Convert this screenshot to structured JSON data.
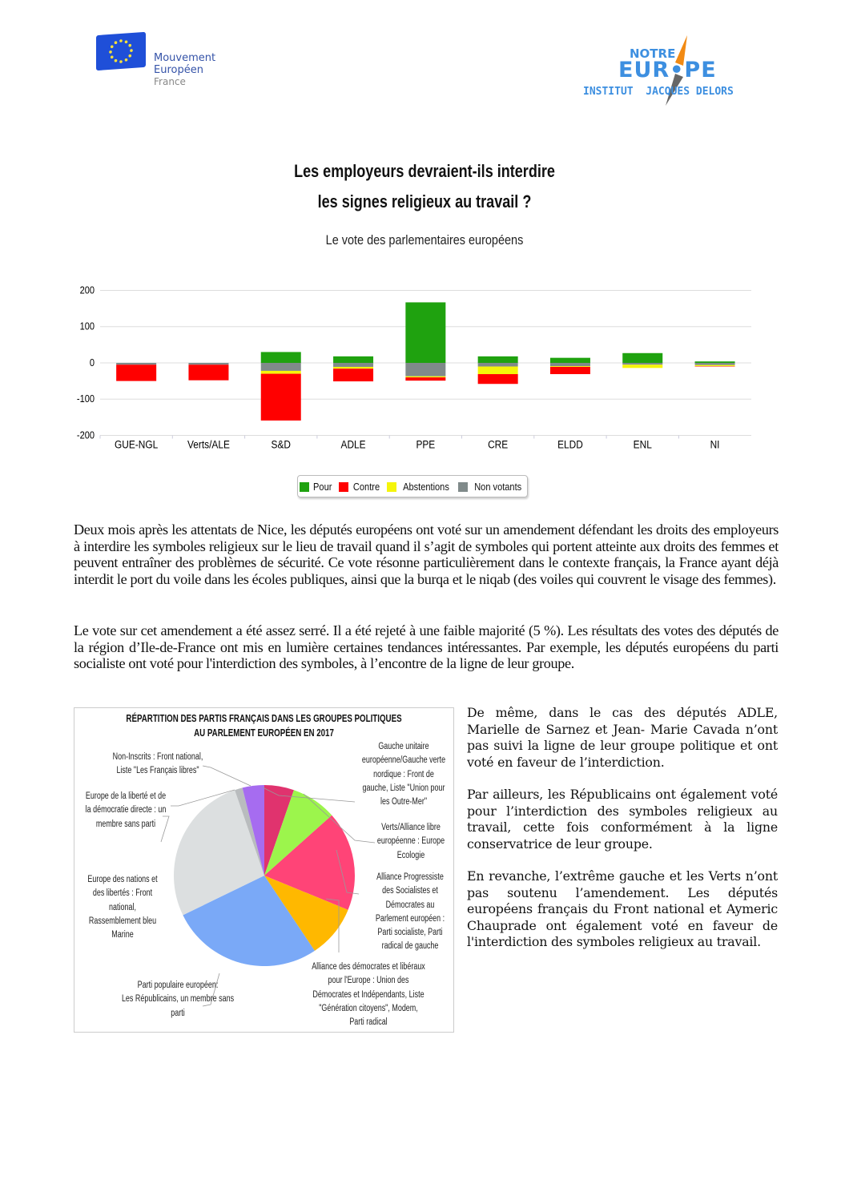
{
  "logos": {
    "left": {
      "lines": [
        "Mouvement",
        "Européen",
        "France"
      ]
    },
    "right": {
      "notre": "NOTRE",
      "europe": "EUR•PE",
      "institut": "INSTITUT  JACQUES DELORS"
    }
  },
  "header": {
    "title_line1": "Les employeurs devraient-ils interdire",
    "title_line2": "les signes religieux au travail ?",
    "subtitle": "Le vote des parlementaires européens"
  },
  "chart_data": [
    {
      "type": "bar",
      "stacked": true,
      "title": "Le vote des parlementaires européens",
      "categories": [
        "GUE-NGL",
        "Verts/ALE",
        "S&D",
        "ADLE",
        "PPE",
        "CRE",
        "ELDD",
        "ENL",
        "NI"
      ],
      "series": [
        {
          "name": "Pour",
          "color": "#1fa20f",
          "values": [
            0,
            0,
            30,
            18,
            167,
            18,
            14,
            27,
            4
          ]
        },
        {
          "name": "Contre",
          "color": "#ff0000",
          "values": [
            -45,
            -43,
            -129,
            -35,
            -9,
            -27,
            -20,
            0,
            -1
          ]
        },
        {
          "name": "Abstentions",
          "color": "#f5f50a",
          "values": [
            0,
            0,
            -8,
            -5,
            -3,
            -21,
            -2,
            -9,
            -3
          ]
        },
        {
          "name": "Non votants",
          "color": "#808a8a",
          "values": [
            -5,
            -5,
            -22,
            -11,
            -37,
            -10,
            -9,
            -5,
            -6
          ]
        }
      ],
      "stack_order_negative": [
        "Non votants",
        "Abstentions",
        "Contre"
      ],
      "ylim": [
        -200,
        200
      ],
      "yticks": [
        200,
        100,
        0,
        -100,
        -200
      ],
      "grid": true,
      "legend": "bottom-center",
      "xlabel": "",
      "ylabel": ""
    },
    {
      "type": "pie",
      "title_line1": "RÉPARTITION DES PARTIS FRANÇAIS DANS LES GROUPES POLITIQUES",
      "title_line2": "AU PARLEMENT EUROPÉEN EN 2017",
      "slices": [
        {
          "label": "Gauche unitaire\neuropéenne/Gauche verte\nnordique : Front de\ngauche, Liste \"Union pour\nles Outre-Mer\"",
          "value": 5.3,
          "color": "#e0336e"
        },
        {
          "label": "Verts/Alliance libre\neuropéenne : Europe\nEcologie",
          "value": 8.1,
          "color": "#9cf54c"
        },
        {
          "label": "Alliance Progressiste\ndes Socialistes et\nDémocrates au\nParlement européen :\nParti socialiste, Parti\nradical de gauche",
          "value": 17.8,
          "color": "#ff4477"
        },
        {
          "label": "Alliance des démocrates et libéraux\npour l'Europe : Union des\nDémocrates et Indépendants, Liste\n\"Génération citoyens\", Modem,\nParti radical",
          "value": 9.4,
          "color": "#ffb800"
        },
        {
          "label": "Parti populaire européen:\nLes Républicains, un membre sans\nparti",
          "value": 27.2,
          "color": "#7aa9f7"
        },
        {
          "label": "Europe des nations et\ndes libertés : Front\nnational,\nRassemblement bleu\nMarine",
          "value": 26.9,
          "color": "#dcdfe0"
        },
        {
          "label": "Europe de la liberté et de\nla démocratie directe : un\nmembre sans parti",
          "value": 1.4,
          "color": "#b9bcbe"
        },
        {
          "label": "Non-Inscrits : Front national,\nListe \"Les Français libres\"",
          "value": 3.9,
          "color": "#a66cf0"
        }
      ]
    }
  ],
  "body": {
    "para1": "Deux mois après les attentats de Nice, les députés européens ont voté sur un amendement défendant les droits des employeurs à interdire les symboles religieux sur le lieu de travail quand il s’agit de symboles qui portent atteinte aux droits des femmes et peuvent entraîner des problèmes de sécurité. Ce vote résonne particulièrement dans le contexte français, la France ayant déjà interdit le port du voile dans les écoles publiques, ainsi que la burqa et le niqab (des voiles qui couvrent le visage des femmes).",
    "para2": "Le vote sur cet amendement a été assez serré.  Il a été rejeté à une faible majorité (5 %). Les résultats des votes des députés de la région d’Ile-de-France ont mis en lumière certaines tendances intéressantes. Par exemple, les députés européens du parti socialiste ont voté pour l'interdiction des symboles, à l’encontre de la ligne de leur  groupe.",
    "para3": "De même, dans le cas des députés ADLE, Marielle de Sarnez et Jean- Marie Cavada n’ont pas suivi la ligne de leur groupe politique et ont voté en faveur de l’interdiction.",
    "para4": "Par ailleurs, les Républicains ont également voté pour l’interdiction des symboles religieux au travail, cette fois conformément à la ligne conservatrice de leur groupe.",
    "para5": "En revanche, l’extrême gauche et les Verts n’ont pas soutenu l’amendement. Les députés européens français du Front national et Aymeric Chauprade ont également voté en faveur de l'interdiction des symboles religieux au travail."
  }
}
